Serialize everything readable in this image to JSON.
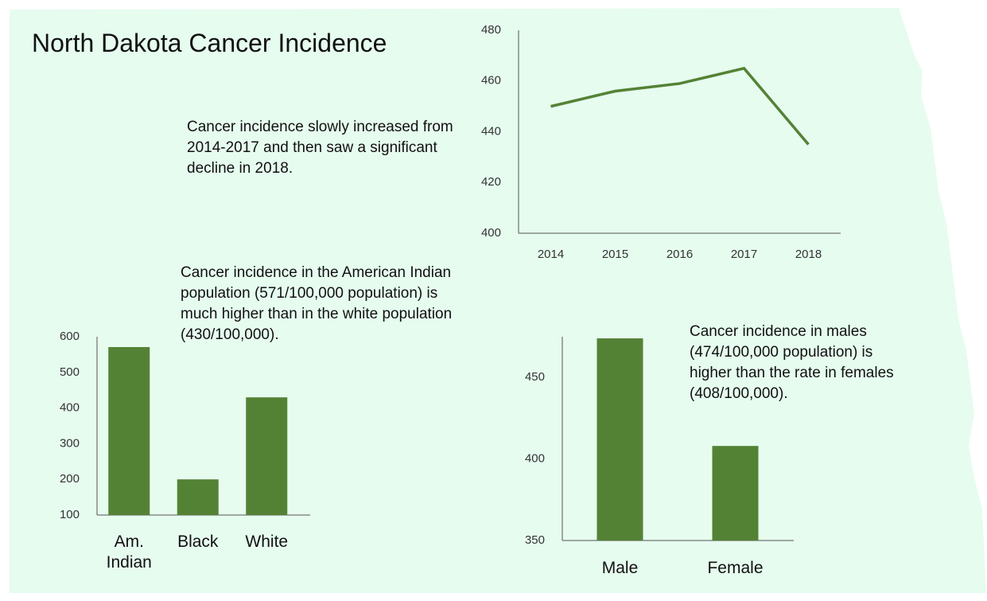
{
  "title": "North Dakota Cancer Incidence",
  "chart_data": [
    {
      "type": "line",
      "annotation": "Cancer incidence slowly increased from 2014-2017 and then saw a significant decline in 2018.",
      "categories": [
        "2014",
        "2015",
        "2016",
        "2017",
        "2018"
      ],
      "values": [
        450,
        456,
        459,
        465,
        435
      ],
      "color": "#548235",
      "ylim": [
        400,
        480
      ],
      "yticks": [
        400,
        420,
        440,
        460,
        480
      ],
      "grid": false
    },
    {
      "type": "bar",
      "annotation": "Cancer incidence in the American Indian population (571/100,000 population) is much higher than in the white population (430/100,000).",
      "categories": [
        "Am. Indian",
        "Black",
        "White"
      ],
      "values": [
        571,
        200,
        430
      ],
      "color": "#548235",
      "ylim": [
        100,
        600
      ],
      "yticks": [
        100,
        200,
        300,
        400,
        500,
        600
      ],
      "grid": false
    },
    {
      "type": "bar",
      "annotation": "Cancer incidence in males (474/100,000 population) is higher than the rate in females (408/100,000).",
      "categories": [
        "Male",
        "Female"
      ],
      "values": [
        474,
        408
      ],
      "color": "#548235",
      "ylim": [
        350,
        475
      ],
      "yticks": [
        350,
        400,
        450
      ],
      "grid": false
    }
  ]
}
